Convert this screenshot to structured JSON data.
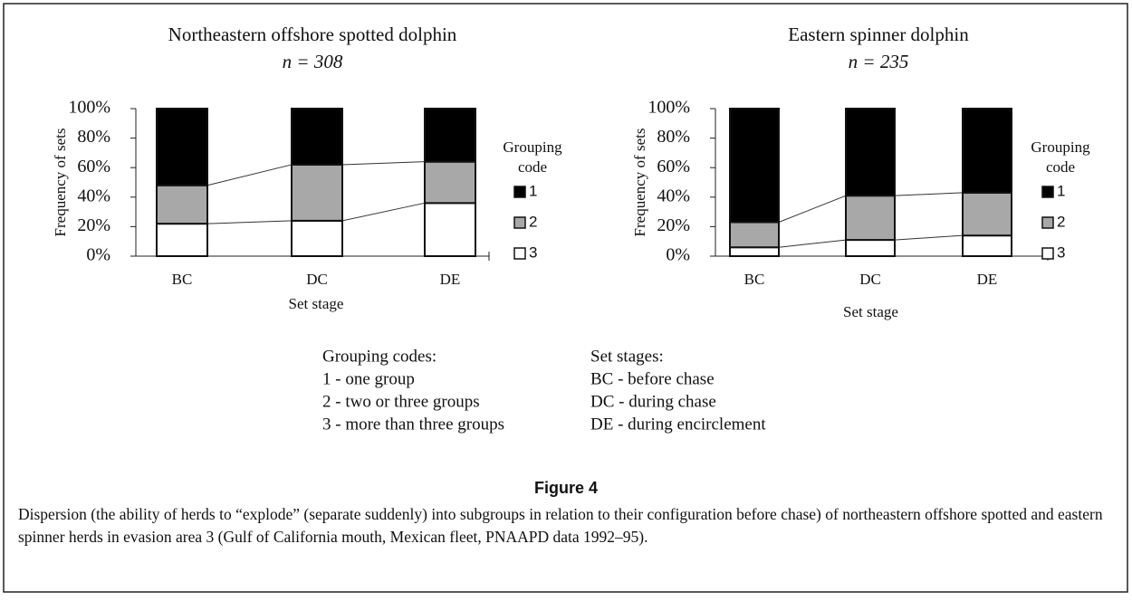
{
  "chart_data": [
    {
      "type": "bar",
      "stacked": true,
      "title": "Northeastern offshore spotted dolphin",
      "subtitle": "n = 308",
      "xlabel": "Set stage",
      "ylabel": "Frequency of sets",
      "legend_title": [
        "Grouping",
        "code"
      ],
      "categories": [
        "BC",
        "DC",
        "DE"
      ],
      "series": [
        {
          "name": "3",
          "color": "#ffffff",
          "values": [
            22,
            24,
            36
          ]
        },
        {
          "name": "2",
          "color": "#a8a8a8",
          "values": [
            26,
            38,
            28
          ]
        },
        {
          "name": "1",
          "color": "#000000",
          "values": [
            52,
            38,
            36
          ]
        }
      ],
      "ylim": [
        0,
        100
      ],
      "yticks": [
        {
          "value": 0,
          "label": "0%"
        },
        {
          "value": 20,
          "label": "20%"
        },
        {
          "value": 40,
          "label": "40%"
        },
        {
          "value": 60,
          "label": "60%"
        },
        {
          "value": 80,
          "label": "80%"
        },
        {
          "value": 100,
          "label": "100%"
        }
      ]
    },
    {
      "type": "bar",
      "stacked": true,
      "title": "Eastern spinner dolphin",
      "subtitle": "n = 235",
      "xlabel": "Set stage",
      "ylabel": "Frequency of sets",
      "legend_title": [
        "Grouping",
        "code"
      ],
      "categories": [
        "BC",
        "DC",
        "DE"
      ],
      "series": [
        {
          "name": "3",
          "color": "#ffffff",
          "values": [
            6,
            11,
            14
          ]
        },
        {
          "name": "2",
          "color": "#a8a8a8",
          "values": [
            17,
            30,
            29
          ]
        },
        {
          "name": "1",
          "color": "#000000",
          "values": [
            77,
            59,
            57
          ]
        }
      ],
      "ylim": [
        0,
        100
      ],
      "yticks": [
        {
          "value": 0,
          "label": "0%"
        },
        {
          "value": 20,
          "label": "20%"
        },
        {
          "value": 40,
          "label": "40%"
        },
        {
          "value": 60,
          "label": "60%"
        },
        {
          "value": 80,
          "label": "80%"
        },
        {
          "value": 100,
          "label": "100%"
        }
      ]
    }
  ],
  "notes": {
    "grouping_title": "Grouping codes:",
    "grouping": [
      "1 - one group",
      "2 - two or three groups",
      "3 - more than three groups"
    ],
    "stages_title": "Set stages:",
    "stages": [
      "BC - before chase",
      "DC - during chase",
      "DE - during encirclement"
    ]
  },
  "figure": {
    "label": "Figure 4",
    "caption": "Dispersion (the ability of herds to “explode” (separate suddenly) into subgroups in relation to their configuration before chase) of northeastern offshore spotted and eastern spinner herds in evasion area 3 (Gulf of California mouth, Mexican fleet, PNAAPD data 1992–95)."
  }
}
